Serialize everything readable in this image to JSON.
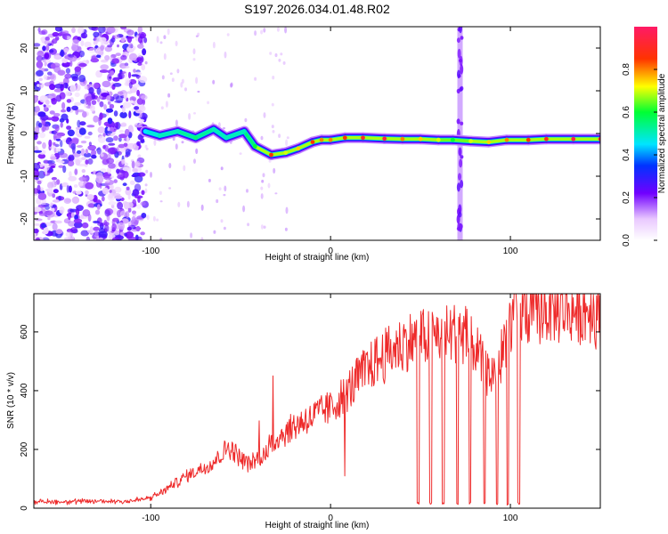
{
  "figure": {
    "title": "S197.2026.034.01.48.R02"
  },
  "chart_data": [
    {
      "type": "heatmap",
      "name": "spectrogram",
      "title": "S197.2026.034.01.48.R02",
      "xlabel": "Height of straight line (km)",
      "ylabel": "Frequency (Hz)",
      "xlim": [
        -165,
        150
      ],
      "ylim": [
        -25,
        25
      ],
      "xticks": [
        -100,
        0,
        100
      ],
      "yticks": [
        -20,
        -10,
        0,
        10,
        20
      ],
      "colorbar": {
        "label": "Normalized spectral amplitude",
        "range": [
          0,
          1
        ],
        "ticks": [
          0.0,
          0.2,
          0.4,
          0.6,
          0.8
        ]
      },
      "noise_region_x": [
        -165,
        -103
      ],
      "noise_amplitude_range": [
        0.05,
        0.3
      ],
      "interference_band_x": 72,
      "signal_ridge": [
        {
          "x": -103,
          "y": 0.5,
          "amp": 0.45
        },
        {
          "x": -95,
          "y": -0.5,
          "amp": 0.5
        },
        {
          "x": -85,
          "y": 0.5,
          "amp": 0.5
        },
        {
          "x": -75,
          "y": -1,
          "amp": 0.55
        },
        {
          "x": -65,
          "y": 1,
          "amp": 0.5
        },
        {
          "x": -58,
          "y": -1,
          "amp": 0.5
        },
        {
          "x": -48,
          "y": 0.5,
          "amp": 0.5
        },
        {
          "x": -42,
          "y": -3,
          "amp": 0.6
        },
        {
          "x": -33,
          "y": -5,
          "amp": 0.85
        },
        {
          "x": -25,
          "y": -4.5,
          "amp": 0.7
        },
        {
          "x": -18,
          "y": -3.5,
          "amp": 0.75
        },
        {
          "x": -10,
          "y": -2,
          "amp": 0.85
        },
        {
          "x": -5,
          "y": -1.5,
          "amp": 0.8
        },
        {
          "x": 0,
          "y": -1.5,
          "amp": 0.8
        },
        {
          "x": 8,
          "y": -1,
          "amp": 0.85
        },
        {
          "x": 18,
          "y": -1,
          "amp": 0.9
        },
        {
          "x": 30,
          "y": -1.2,
          "amp": 0.95
        },
        {
          "x": 40,
          "y": -1.3,
          "amp": 0.8
        },
        {
          "x": 50,
          "y": -1.3,
          "amp": 0.75
        },
        {
          "x": 60,
          "y": -1.5,
          "amp": 0.7
        },
        {
          "x": 68,
          "y": -1.5,
          "amp": 0.6
        },
        {
          "x": 78,
          "y": -1.8,
          "amp": 0.7
        },
        {
          "x": 88,
          "y": -2,
          "amp": 0.75
        },
        {
          "x": 98,
          "y": -1.5,
          "amp": 0.8
        },
        {
          "x": 110,
          "y": -1.5,
          "amp": 0.85
        },
        {
          "x": 120,
          "y": -1.3,
          "amp": 0.9
        },
        {
          "x": 135,
          "y": -1.3,
          "amp": 0.95
        },
        {
          "x": 150,
          "y": -1.3,
          "amp": 0.95
        }
      ]
    },
    {
      "type": "line",
      "name": "snr",
      "xlabel": "Height of straight line (km)",
      "ylabel": "SNR (10 * v/v)",
      "xlim": [
        -165,
        150
      ],
      "ylim": [
        0,
        730
      ],
      "xticks": [
        -100,
        0,
        100
      ],
      "yticks": [
        0,
        200,
        400,
        600
      ],
      "color": "#ee2a2a",
      "series": [
        {
          "name": "SNR",
          "x": [
            -165,
            -150,
            -130,
            -110,
            -100,
            -95,
            -90,
            -85,
            -80,
            -75,
            -70,
            -65,
            -60,
            -57,
            -55,
            -50,
            -45,
            -40,
            -35,
            -30,
            -25,
            -20,
            -15,
            -10,
            -5,
            0,
            5,
            10,
            15,
            20,
            25,
            30,
            35,
            40,
            45,
            50,
            55,
            60,
            65,
            70,
            75,
            80,
            85,
            90,
            95,
            100,
            105,
            110,
            115,
            120,
            125,
            130,
            135,
            140,
            145,
            150
          ],
          "y": [
            22,
            22,
            23,
            25,
            35,
            50,
            70,
            90,
            110,
            125,
            140,
            160,
            185,
            210,
            200,
            170,
            150,
            170,
            200,
            240,
            260,
            280,
            300,
            310,
            330,
            340,
            370,
            400,
            440,
            470,
            500,
            520,
            540,
            560,
            570,
            580,
            580,
            590,
            590,
            600,
            590,
            550,
            480,
            450,
            520,
            640,
            660,
            670,
            670,
            680,
            675,
            680,
            675,
            680,
            675,
            650
          ]
        }
      ],
      "annotations": {
        "drop_to_zero_x": [
          48,
          55,
          62,
          70,
          77,
          85,
          92,
          98,
          104
        ],
        "spikes": [
          {
            "x": -32,
            "y": 450
          },
          {
            "x": 8,
            "y": 110
          },
          {
            "x": 103,
            "y": 730
          }
        ]
      }
    }
  ]
}
